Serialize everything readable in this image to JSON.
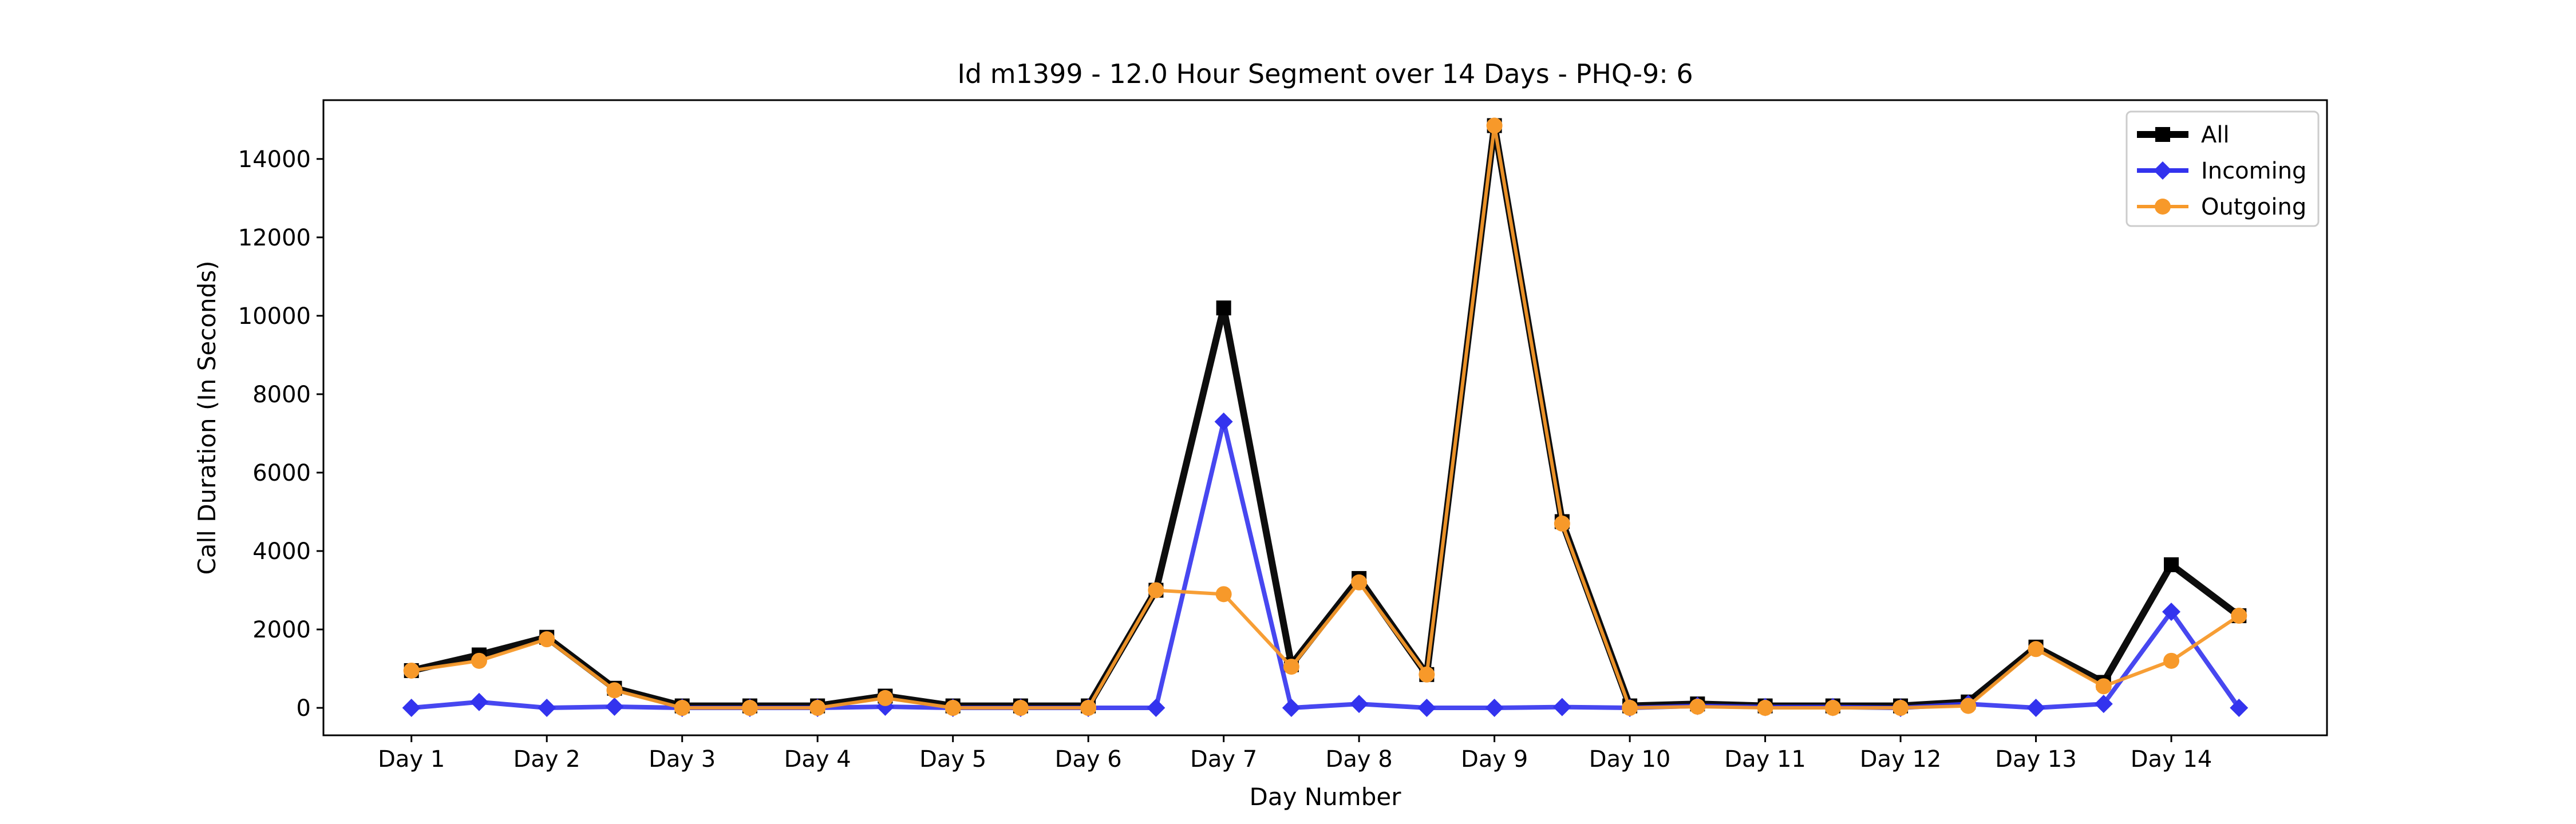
{
  "chart_data": {
    "type": "line",
    "title": "Id m1399 - 12.0 Hour Segment over 14 Days - PHQ-9: 6",
    "xlabel": "Day Number",
    "ylabel": "Call Duration (In Seconds)",
    "ylim": [
      -700,
      15500
    ],
    "yticks": [
      0,
      2000,
      4000,
      6000,
      8000,
      10000,
      12000,
      14000
    ],
    "xticks": [
      {
        "label": "Day 1",
        "x": 1
      },
      {
        "label": "Day 2",
        "x": 3
      },
      {
        "label": "Day 3",
        "x": 5
      },
      {
        "label": "Day 4",
        "x": 7
      },
      {
        "label": "Day 5",
        "x": 9
      },
      {
        "label": "Day 6",
        "x": 11
      },
      {
        "label": "Day 7",
        "x": 13
      },
      {
        "label": "Day 8",
        "x": 15
      },
      {
        "label": "Day 9",
        "x": 17
      },
      {
        "label": "Day 10",
        "x": 19
      },
      {
        "label": "Day 11",
        "x": 21
      },
      {
        "label": "Day 12",
        "x": 23
      },
      {
        "label": "Day 13",
        "x": 25
      },
      {
        "label": "Day 14",
        "x": 27
      }
    ],
    "xlim": [
      -0.3,
      29.3
    ],
    "x": [
      1,
      2,
      3,
      4,
      5,
      6,
      7,
      8,
      9,
      10,
      11,
      12,
      13,
      14,
      15,
      16,
      17,
      18,
      19,
      20,
      21,
      22,
      23,
      24,
      25,
      26,
      27,
      28
    ],
    "grid": false,
    "legend_position": "top-right",
    "series": [
      {
        "name": "All",
        "color": "#000000",
        "marker": "square",
        "values": [
          950,
          1350,
          1800,
          500,
          50,
          50,
          50,
          300,
          50,
          50,
          50,
          3000,
          10200,
          1100,
          3300,
          850,
          14850,
          4750,
          50,
          100,
          50,
          50,
          50,
          150,
          1550,
          650,
          3650,
          2350
        ]
      },
      {
        "name": "Incoming",
        "color": "#3333ee",
        "marker": "diamond",
        "values": [
          0,
          150,
          0,
          30,
          0,
          0,
          0,
          30,
          0,
          0,
          0,
          0,
          7300,
          0,
          100,
          0,
          0,
          20,
          0,
          50,
          20,
          20,
          0,
          100,
          0,
          100,
          2450,
          0
        ]
      },
      {
        "name": "Outgoing",
        "color": "#f7992a",
        "marker": "circle",
        "values": [
          950,
          1200,
          1750,
          450,
          0,
          0,
          0,
          250,
          0,
          0,
          0,
          3000,
          2900,
          1050,
          3200,
          850,
          14850,
          4700,
          0,
          30,
          0,
          0,
          0,
          50,
          1500,
          550,
          1200,
          2350
        ]
      }
    ]
  }
}
